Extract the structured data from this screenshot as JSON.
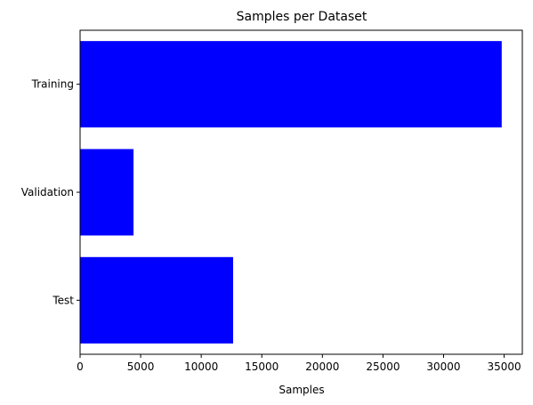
{
  "chart_data": {
    "type": "bar",
    "orientation": "horizontal",
    "title": "Samples per Dataset",
    "xlabel": "Samples",
    "ylabel": "",
    "categories": [
      "Training",
      "Validation",
      "Test"
    ],
    "values": [
      34799,
      4410,
      12630
    ],
    "xlim": [
      0,
      36500
    ],
    "xticks": [
      0,
      5000,
      10000,
      15000,
      20000,
      25000,
      30000,
      35000
    ],
    "xtick_labels": [
      "0",
      "5000",
      "10000",
      "15000",
      "20000",
      "25000",
      "30000",
      "35000"
    ],
    "bar_color": "#0000ff",
    "grid": false,
    "legend": "none"
  }
}
